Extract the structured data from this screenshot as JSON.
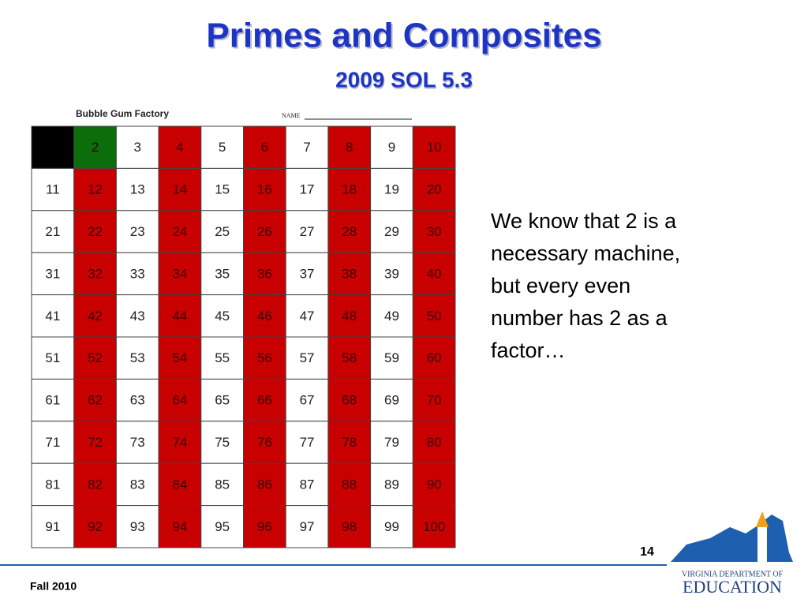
{
  "header": {
    "title": "Primes and Composites",
    "subtitle": "2009 SOL 5.3"
  },
  "table": {
    "caption": "Bubble Gum Factory",
    "name_label": "NAME",
    "rows": [
      [
        null,
        2,
        3,
        4,
        5,
        6,
        7,
        8,
        9,
        10
      ],
      [
        11,
        12,
        13,
        14,
        15,
        16,
        17,
        18,
        19,
        20
      ],
      [
        21,
        22,
        23,
        24,
        25,
        26,
        27,
        28,
        29,
        30
      ],
      [
        31,
        32,
        33,
        34,
        35,
        36,
        37,
        38,
        39,
        40
      ],
      [
        41,
        42,
        43,
        44,
        45,
        46,
        47,
        48,
        49,
        50
      ],
      [
        51,
        52,
        53,
        54,
        55,
        56,
        57,
        58,
        59,
        60
      ],
      [
        61,
        62,
        63,
        64,
        65,
        66,
        67,
        68,
        69,
        70
      ],
      [
        71,
        72,
        73,
        74,
        75,
        76,
        77,
        78,
        79,
        80
      ],
      [
        81,
        82,
        83,
        84,
        85,
        86,
        87,
        88,
        89,
        90
      ],
      [
        91,
        92,
        93,
        94,
        95,
        96,
        97,
        98,
        99,
        100
      ]
    ],
    "cell_colors": [
      [
        "#000000",
        "#0b6e0b",
        "#ffffff",
        "#c80000",
        "#ffffff",
        "#c80000",
        "#ffffff",
        "#c80000",
        "#ffffff",
        "#c80000"
      ],
      [
        "#ffffff",
        "#c80000",
        "#ffffff",
        "#c80000",
        "#ffffff",
        "#c80000",
        "#ffffff",
        "#c80000",
        "#ffffff",
        "#c80000"
      ],
      [
        "#ffffff",
        "#c80000",
        "#ffffff",
        "#c80000",
        "#ffffff",
        "#c80000",
        "#ffffff",
        "#c80000",
        "#ffffff",
        "#c80000"
      ],
      [
        "#ffffff",
        "#c80000",
        "#ffffff",
        "#c80000",
        "#ffffff",
        "#c80000",
        "#ffffff",
        "#c80000",
        "#ffffff",
        "#c80000"
      ],
      [
        "#ffffff",
        "#c80000",
        "#ffffff",
        "#c80000",
        "#ffffff",
        "#c80000",
        "#ffffff",
        "#c80000",
        "#ffffff",
        "#c80000"
      ],
      [
        "#ffffff",
        "#c80000",
        "#ffffff",
        "#c80000",
        "#ffffff",
        "#c80000",
        "#ffffff",
        "#c80000",
        "#ffffff",
        "#c80000"
      ],
      [
        "#ffffff",
        "#c80000",
        "#ffffff",
        "#c80000",
        "#ffffff",
        "#c80000",
        "#ffffff",
        "#c80000",
        "#ffffff",
        "#c80000"
      ],
      [
        "#ffffff",
        "#c80000",
        "#ffffff",
        "#c80000",
        "#ffffff",
        "#c80000",
        "#ffffff",
        "#c80000",
        "#ffffff",
        "#c80000"
      ],
      [
        "#ffffff",
        "#c80000",
        "#ffffff",
        "#c80000",
        "#ffffff",
        "#c80000",
        "#ffffff",
        "#c80000",
        "#ffffff",
        "#c80000"
      ],
      [
        "#ffffff",
        "#c80000",
        "#ffffff",
        "#c80000",
        "#ffffff",
        "#c80000",
        "#ffffff",
        "#c80000",
        "#ffffff",
        "#c80000"
      ]
    ]
  },
  "body": {
    "lines": [
      "We know that 2 is a",
      "necessary machine,",
      "but every even",
      "number has 2 as a",
      "factor…"
    ]
  },
  "footer": {
    "page": "14",
    "date": "Fall 2010",
    "logo_top": "VIRGINIA DEPARTMENT OF",
    "logo_bottom": "EDUCATION"
  }
}
